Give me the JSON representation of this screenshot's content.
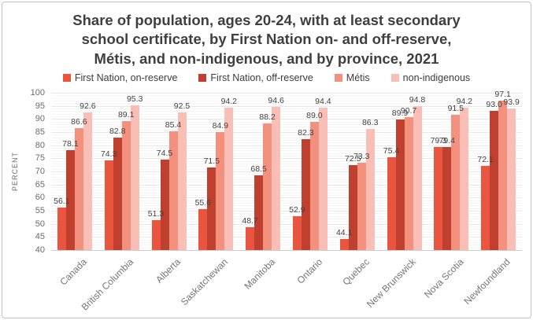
{
  "title": {
    "lines": [
      "Share of population, ages 20-24, with at least secondary",
      "school certificate, by First Nation on- and off-reserve,",
      "Métis, and non-indigenous, and by province, 2021"
    ]
  },
  "chart_data": {
    "type": "bar",
    "title": "Share of population, ages 20-24, with at least secondary school certificate, by First Nation on- and off-reserve, Métis, and non-indigenous, and by province, 2021",
    "xlabel": "",
    "ylabel": "PERCENT",
    "ylim": [
      40,
      100
    ],
    "ytick_step": 5,
    "yticks": [
      40,
      45,
      50,
      55,
      60,
      65,
      70,
      75,
      80,
      85,
      90,
      95,
      100
    ],
    "grid": true,
    "legend_position": "top",
    "value_labels_shown": true,
    "value_label_decimals": 1,
    "categories": [
      "Canada",
      "British Columbia",
      "Alberta",
      "Saskatchewan",
      "Manitoba",
      "Ontario",
      "Quebec",
      "New Brunswick",
      "Nova Scotia",
      "Newfoundland"
    ],
    "series": [
      {
        "name": "First Nation, on-reserve",
        "color": "#e9553e",
        "values": [
          56.1,
          74.3,
          51.3,
          55.6,
          48.7,
          52.9,
          44.1,
          75.4,
          79.3,
          72.1
        ]
      },
      {
        "name": "First Nation, off-reserve",
        "color": "#bf402e",
        "values": [
          78.1,
          82.8,
          74.5,
          71.5,
          68.5,
          82.3,
          72.5,
          89.9,
          79.4,
          93.0
        ]
      },
      {
        "name": "Métis",
        "color": "#f4907e",
        "values": [
          86.6,
          89.1,
          85.4,
          84.9,
          88.2,
          89.0,
          73.3,
          90.7,
          91.5,
          97.1
        ]
      },
      {
        "name": "non-indigenous",
        "color": "#f9beb6",
        "values": [
          92.6,
          95.3,
          92.5,
          94.2,
          94.6,
          94.4,
          86.3,
          94.8,
          94.2,
          93.9
        ]
      }
    ]
  }
}
